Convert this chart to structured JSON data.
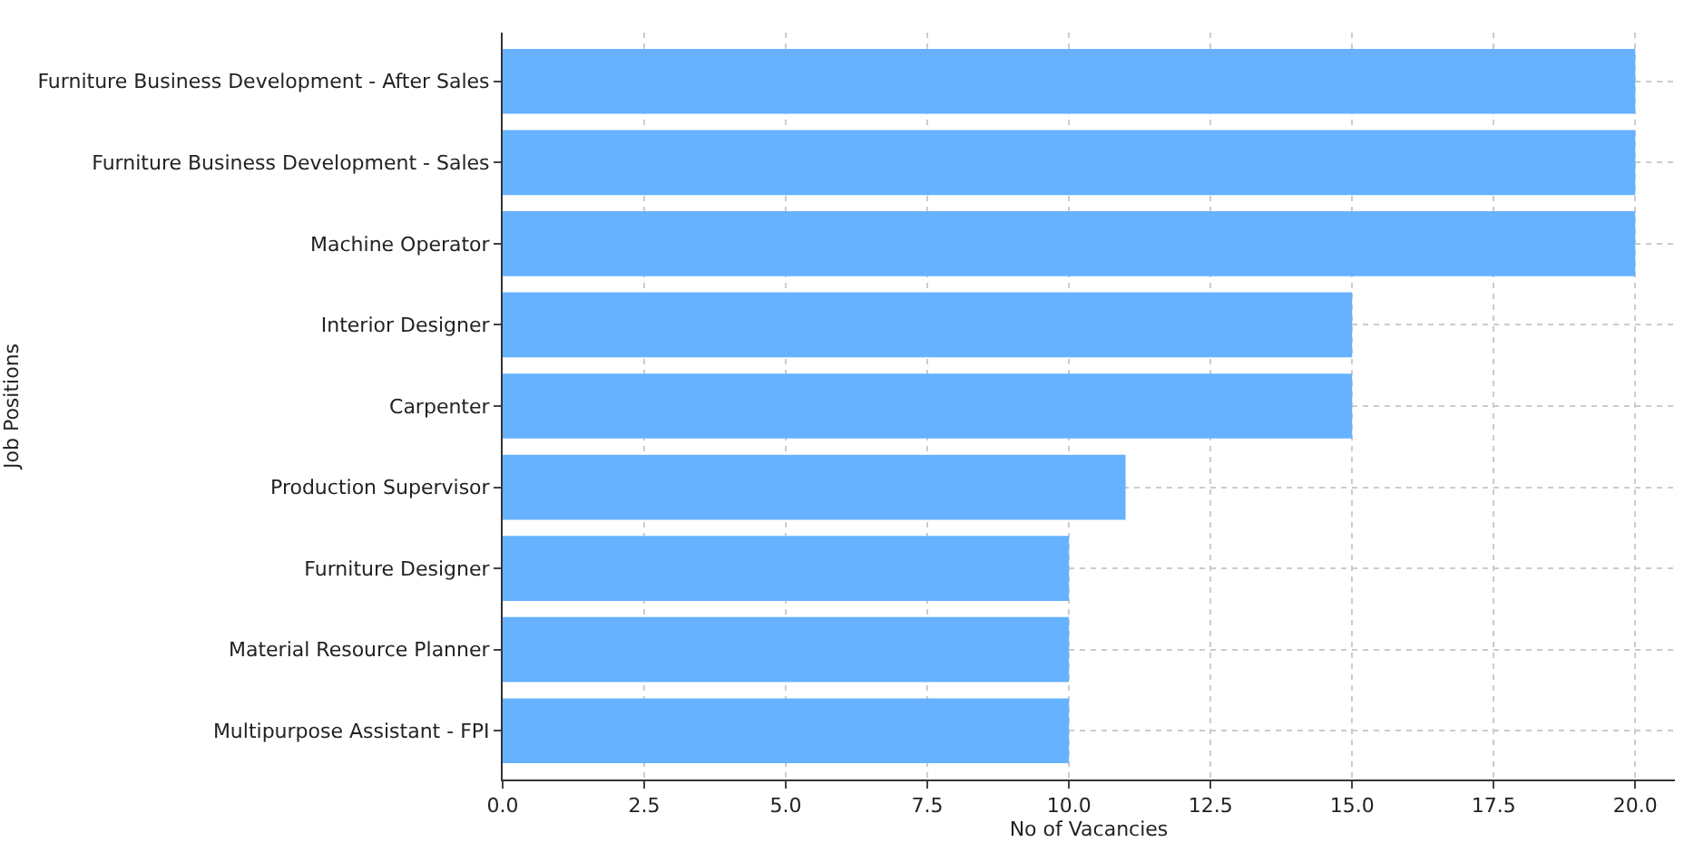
{
  "chart_data": {
    "type": "bar",
    "orientation": "horizontal",
    "xlabel": "No of Vacancies",
    "ylabel": "Job Positions",
    "categories": [
      "Furniture Business Development - After Sales",
      "Furniture Business Development - Sales",
      "Machine Operator",
      "Interior Designer",
      "Carpenter",
      "Production Supervisor",
      "Furniture Designer",
      "Material Resource Planner",
      "Multipurpose Assistant - FPI"
    ],
    "values": [
      20,
      20,
      20,
      15,
      15,
      11,
      10,
      10,
      10
    ],
    "color": "#66b2ff",
    "xlim": [
      0,
      20.7
    ],
    "xticks": [
      {
        "value": 0,
        "label": "0.0"
      },
      {
        "value": 2.5,
        "label": "2.5"
      },
      {
        "value": 5,
        "label": "5.0"
      },
      {
        "value": 7.5,
        "label": "7.5"
      },
      {
        "value": 10,
        "label": "10.0"
      },
      {
        "value": 12.5,
        "label": "12.5"
      },
      {
        "value": 15,
        "label": "15.0"
      },
      {
        "value": 17.5,
        "label": "17.5"
      },
      {
        "value": 20,
        "label": "20.0"
      }
    ],
    "grid": true
  }
}
